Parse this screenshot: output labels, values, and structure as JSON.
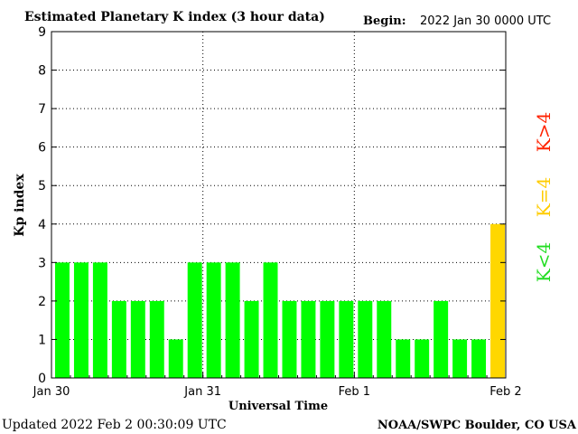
{
  "chart_data": {
    "type": "bar",
    "title": "Estimated Planetary K index (3 hour data)",
    "begin_label": "Begin:",
    "begin_value": "2022 Jan 30 0000 UTC",
    "ylabel": "Kp index",
    "xlabel": "Universal Time",
    "ylim": [
      0,
      9
    ],
    "yticks": [
      "0",
      "1",
      "2",
      "3",
      "4",
      "5",
      "6",
      "7",
      "8",
      "9"
    ],
    "xticks": [
      {
        "label": "Jan 30",
        "index": 0
      },
      {
        "label": "Jan 31",
        "index": 8
      },
      {
        "label": "Feb 1",
        "index": 16
      },
      {
        "label": "Feb 2",
        "index": 24
      }
    ],
    "grid": true,
    "values": [
      3,
      3,
      3,
      2,
      2,
      2,
      1,
      3,
      3,
      3,
      2,
      3,
      2,
      2,
      2,
      2,
      2,
      2,
      1,
      1,
      2,
      1,
      1,
      4
    ],
    "colors": {
      "below4": "#00ff00",
      "equal4": "#ffd700",
      "above4": "#ff0000"
    },
    "legend": [
      {
        "label": "K<4",
        "color": "#22dd22"
      },
      {
        "label": "K=4",
        "color": "#ffcc00"
      },
      {
        "label": "K>4",
        "color": "#ff2200"
      }
    ]
  },
  "footer": {
    "updated": "Updated 2022 Feb  2 00:30:09 UTC",
    "source": "NOAA/SWPC Boulder, CO USA"
  }
}
